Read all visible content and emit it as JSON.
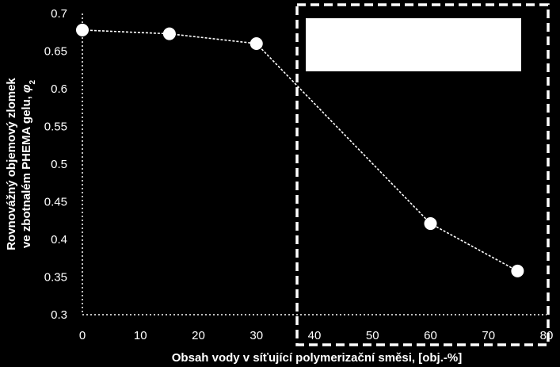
{
  "chart_data": {
    "type": "line",
    "title": "",
    "xlabel": "Obsah vody v síťující polymerizační směsi, [obj.-%]",
    "ylabel_line1": "Rovnovážný objemový zlomek",
    "ylabel_line2": "ve zbotnalém PHEMA gelu,",
    "ylabel_symbol": "φ",
    "ylabel_subscript": "2",
    "x": [
      0,
      15,
      30,
      60,
      75
    ],
    "values": [
      0.678,
      0.673,
      0.66,
      0.421,
      0.358
    ],
    "xlim": [
      0,
      80
    ],
    "ylim": [
      0.3,
      0.7
    ],
    "x_ticks": [
      "0",
      "10",
      "20",
      "30",
      "40",
      "50",
      "60",
      "70",
      "80"
    ],
    "y_ticks": [
      "0.3",
      "0.35",
      "0.4",
      "0.45",
      "0.5",
      "0.55",
      "0.6",
      "0.65",
      "0.7"
    ],
    "x_tick_values": [
      0,
      10,
      20,
      30,
      40,
      50,
      60,
      70,
      80
    ],
    "y_tick_values": [
      0.3,
      0.35,
      0.4,
      0.45,
      0.5,
      0.55,
      0.6,
      0.65,
      0.7
    ],
    "highlight_region": {
      "x": [
        37,
        80
      ]
    },
    "legend_placeholder": "top-right",
    "grid": false,
    "colors": {
      "background": "#000000",
      "foreground": "#ffffff"
    }
  }
}
